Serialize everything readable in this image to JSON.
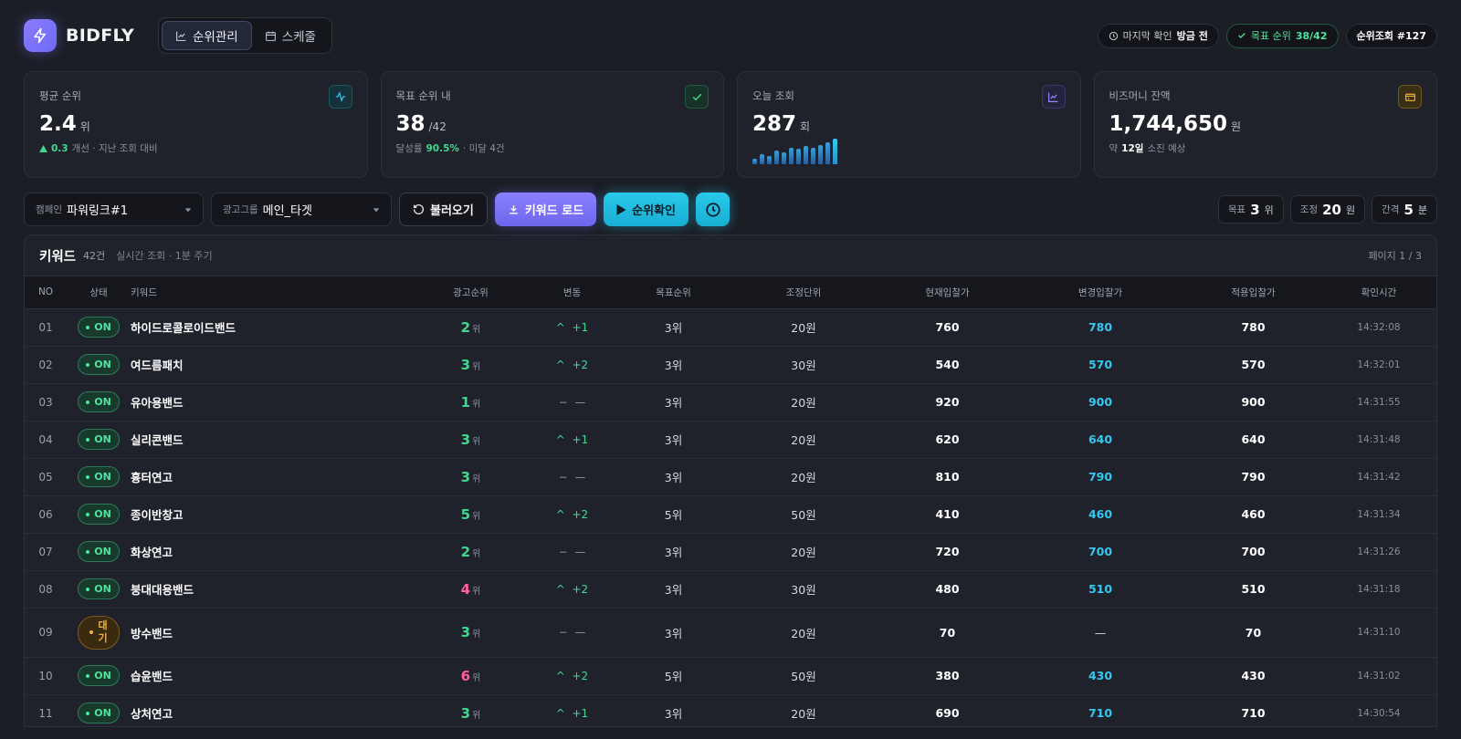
{
  "brand": {
    "name": "BIDFLY"
  },
  "nav": {
    "tabs": [
      {
        "label": "순위관리"
      },
      {
        "label": "스케줄"
      }
    ]
  },
  "header_pills": {
    "last_check_label": "마지막 확인",
    "last_check_value": "방금 전",
    "target_label": "목표 순위",
    "target_value": "38/42",
    "query_label": "순위조회 #127"
  },
  "cards": [
    {
      "label": "평균 순위",
      "value": "2.4",
      "unit": "위",
      "delta": "0.3",
      "sub": "개선 · 지난 조회 대비",
      "icon": "activity-icon"
    },
    {
      "label": "목표 순위 내",
      "value": "38",
      "unit": "/42",
      "sub_prefix": "달성률",
      "rate": "90.5%",
      "sub_suffix": "· 미달 4건",
      "icon": "check-icon"
    },
    {
      "label": "오늘 조회",
      "value": "287",
      "unit": "회",
      "icon": "chart-icon",
      "sparkline": [
        6,
        11,
        9,
        14,
        13,
        17,
        16,
        19,
        17,
        20,
        23,
        27
      ]
    },
    {
      "label": "비즈머니 잔액",
      "value": "1,744,650",
      "unit": "원",
      "sub_prefix": "약",
      "days": "12일",
      "sub_suffix": "소진 예상",
      "icon": "wallet-icon"
    }
  ],
  "controls": {
    "campaign_label": "캠페인",
    "campaign_value": "파워링크#1",
    "adgroup_label": "광고그룹",
    "adgroup_value": "메인_타겟",
    "load_btn": "불러오기",
    "keyword_load_btn": "키워드 로드",
    "rank_check_btn": "순위확인",
    "target_label": "목표",
    "target_value": "3",
    "target_unit": "위",
    "adjust_label": "조정",
    "adjust_value": "20",
    "adjust_unit": "원",
    "interval_label": "간격",
    "interval_value": "5",
    "interval_unit": "분"
  },
  "table": {
    "title": "키워드",
    "count": "42건",
    "note": "실시간 조회 · 1분 주기",
    "page": "페이지 1 / 3",
    "columns": [
      "NO",
      "상태",
      "키워드",
      "광고순위",
      "변동",
      "목표순위",
      "조정단위",
      "현재입찰가",
      "변경입찰가",
      "적용입찰가",
      "확인시간"
    ],
    "rank_unit": "위",
    "rows": [
      {
        "no": "01",
        "status": "ON",
        "keyword": "하이드로콜로이드밴드",
        "rank": "2",
        "rank_color": "green",
        "change_icon": "^",
        "change": "+1",
        "change_dir": "up",
        "target": "3위",
        "unit": "20원",
        "current": "760",
        "changed": "780",
        "applied": "780",
        "time": "14:32:08"
      },
      {
        "no": "02",
        "status": "ON",
        "keyword": "여드름패치",
        "rank": "3",
        "rank_color": "green",
        "change_icon": "^",
        "change": "+2",
        "change_dir": "up",
        "target": "3위",
        "unit": "30원",
        "current": "540",
        "changed": "570",
        "applied": "570",
        "time": "14:32:01"
      },
      {
        "no": "03",
        "status": "ON",
        "keyword": "유아용밴드",
        "rank": "1",
        "rank_color": "green",
        "change_icon": "−",
        "change": "—",
        "change_dir": "flat",
        "target": "3위",
        "unit": "20원",
        "current": "920",
        "changed": "900",
        "applied": "900",
        "time": "14:31:55"
      },
      {
        "no": "04",
        "status": "ON",
        "keyword": "실리콘밴드",
        "rank": "3",
        "rank_color": "green",
        "change_icon": "^",
        "change": "+1",
        "change_dir": "up",
        "target": "3위",
        "unit": "20원",
        "current": "620",
        "changed": "640",
        "applied": "640",
        "time": "14:31:48"
      },
      {
        "no": "05",
        "status": "ON",
        "keyword": "흉터연고",
        "rank": "3",
        "rank_color": "green",
        "change_icon": "−",
        "change": "—",
        "change_dir": "flat",
        "target": "3위",
        "unit": "20원",
        "current": "810",
        "changed": "790",
        "applied": "790",
        "time": "14:31:42"
      },
      {
        "no": "06",
        "status": "ON",
        "keyword": "종이반창고",
        "rank": "5",
        "rank_color": "green",
        "change_icon": "^",
        "change": "+2",
        "change_dir": "up",
        "target": "5위",
        "unit": "50원",
        "current": "410",
        "changed": "460",
        "applied": "460",
        "time": "14:31:34"
      },
      {
        "no": "07",
        "status": "ON",
        "keyword": "화상연고",
        "rank": "2",
        "rank_color": "green",
        "change_icon": "−",
        "change": "—",
        "change_dir": "flat",
        "target": "3위",
        "unit": "20원",
        "current": "720",
        "changed": "700",
        "applied": "700",
        "time": "14:31:26"
      },
      {
        "no": "08",
        "status": "ON",
        "keyword": "붕대대용밴드",
        "rank": "4",
        "rank_color": "pink",
        "change_icon": "^",
        "change": "+2",
        "change_dir": "up",
        "target": "3위",
        "unit": "30원",
        "current": "480",
        "changed": "510",
        "applied": "510",
        "time": "14:31:18"
      },
      {
        "no": "09",
        "status": "대\n기",
        "status_type": "wait",
        "keyword": "방수밴드",
        "rank": "3",
        "rank_color": "green",
        "change_icon": "−",
        "change": "—",
        "change_dir": "flat",
        "target": "3위",
        "unit": "20원",
        "current": "70",
        "changed": "—",
        "applied": "70",
        "time": "14:31:10"
      },
      {
        "no": "10",
        "status": "ON",
        "keyword": "습윤밴드",
        "rank": "6",
        "rank_color": "pink",
        "change_icon": "^",
        "change": "+2",
        "change_dir": "up",
        "target": "5위",
        "unit": "50원",
        "current": "380",
        "changed": "430",
        "applied": "430",
        "time": "14:31:02"
      },
      {
        "no": "11",
        "status": "ON",
        "keyword": "상처연고",
        "rank": "3",
        "rank_color": "green",
        "change_icon": "^",
        "change": "+1",
        "change_dir": "up",
        "target": "3위",
        "unit": "20원",
        "current": "690",
        "changed": "710",
        "applied": "710",
        "time": "14:30:54"
      }
    ]
  },
  "colors": {
    "accent_purple": "#7a72ff",
    "accent_cyan": "#22bfe3",
    "positive": "#3fd98e",
    "warning": "#ff5f9e",
    "pending": "#f4b13a"
  }
}
